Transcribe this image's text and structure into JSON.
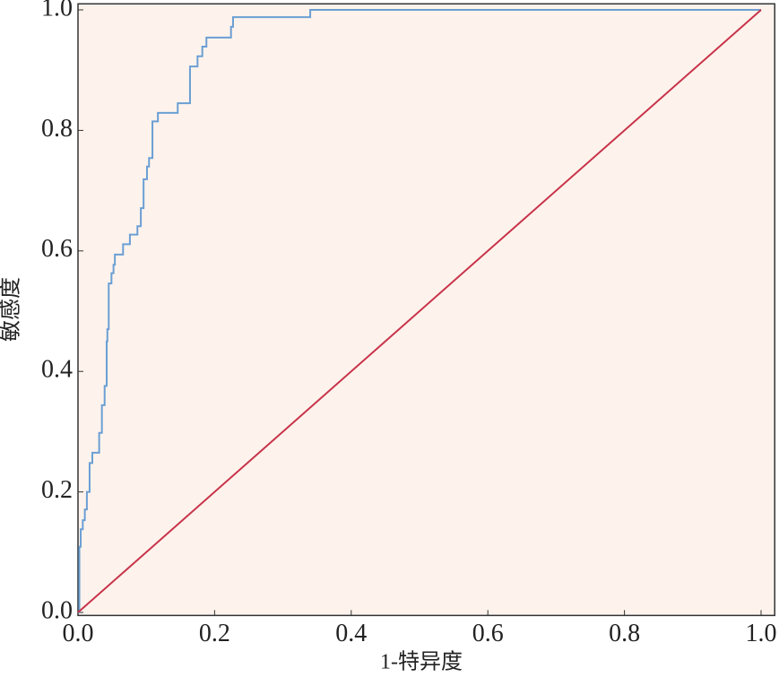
{
  "chart_data": {
    "type": "line",
    "xlabel": "1-特异度",
    "ylabel": "敏感度",
    "xlim": [
      0,
      1.02
    ],
    "ylim": [
      -0.005,
      1.01
    ],
    "xticks": [
      {
        "value": 0,
        "label": "0.0"
      },
      0.2,
      0.4,
      0.6,
      0.8,
      {
        "value": 1,
        "label": "1.0"
      }
    ],
    "yticks": [
      {
        "value": 0,
        "label": "0.0"
      },
      0.2,
      0.4,
      0.6,
      0.8,
      {
        "value": 1,
        "label": "1.0"
      }
    ],
    "background": "#fdf3ec",
    "series": [
      {
        "color": "#6b9fd4",
        "x": [
          0,
          0.002,
          0.002,
          0.004,
          0.004,
          0.007,
          0.007,
          0.01,
          0.01,
          0.013,
          0.013,
          0.017,
          0.017,
          0.021,
          0.021,
          0.031,
          0.031,
          0.035,
          0.035,
          0.039,
          0.039,
          0.042,
          0.042,
          0.043,
          0.043,
          0.045,
          0.045,
          0.049,
          0.049,
          0.052,
          0.052,
          0.054,
          0.054,
          0.066,
          0.066,
          0.076,
          0.076,
          0.087,
          0.087,
          0.092,
          0.092,
          0.096,
          0.096,
          0.101,
          0.101,
          0.104,
          0.104,
          0.109,
          0.109,
          0.117,
          0.117,
          0.146,
          0.146,
          0.164,
          0.164,
          0.175,
          0.175,
          0.182,
          0.182,
          0.188,
          0.188,
          0.224,
          0.224,
          0.227,
          0.227,
          0.34,
          0.34,
          1
        ],
        "values": [
          0,
          0,
          0.109,
          0.109,
          0.138,
          0.138,
          0.153,
          0.153,
          0.171,
          0.171,
          0.2,
          0.2,
          0.248,
          0.248,
          0.265,
          0.265,
          0.298,
          0.298,
          0.344,
          0.344,
          0.376,
          0.376,
          0.45,
          0.45,
          0.47,
          0.47,
          0.546,
          0.546,
          0.563,
          0.563,
          0.577,
          0.577,
          0.594,
          0.594,
          0.611,
          0.611,
          0.627,
          0.627,
          0.641,
          0.641,
          0.671,
          0.671,
          0.719,
          0.719,
          0.74,
          0.74,
          0.754,
          0.754,
          0.815,
          0.815,
          0.829,
          0.829,
          0.845,
          0.845,
          0.906,
          0.906,
          0.923,
          0.923,
          0.939,
          0.939,
          0.954,
          0.954,
          0.972,
          0.972,
          0.988,
          0.988,
          1,
          1
        ]
      },
      {
        "color": "#c8334a",
        "x": [
          0,
          1
        ],
        "values": [
          0,
          1
        ]
      }
    ]
  }
}
